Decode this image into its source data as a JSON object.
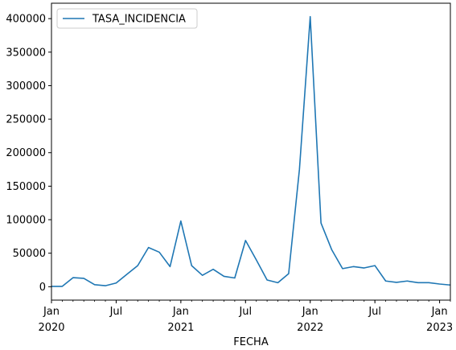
{
  "chart_data": {
    "type": "line",
    "xlabel": "FECHA",
    "ylabel": "",
    "title": "",
    "x": [
      "2020-01",
      "2020-02",
      "2020-03",
      "2020-04",
      "2020-05",
      "2020-06",
      "2020-07",
      "2020-08",
      "2020-09",
      "2020-10",
      "2020-11",
      "2020-12",
      "2021-01",
      "2021-02",
      "2021-03",
      "2021-04",
      "2021-05",
      "2021-06",
      "2021-07",
      "2021-08",
      "2021-09",
      "2021-10",
      "2021-11",
      "2021-12",
      "2022-01",
      "2022-02",
      "2022-03",
      "2022-04",
      "2022-05",
      "2022-06",
      "2022-07",
      "2022-08",
      "2022-09",
      "2022-10",
      "2022-11",
      "2022-12",
      "2023-01",
      "2023-02"
    ],
    "series": [
      {
        "name": "TASA_INCIDENCIA",
        "color": "#1f77b4",
        "values": [
          500,
          500,
          13500,
          12500,
          3000,
          1500,
          5500,
          18500,
          31500,
          58500,
          51500,
          30000,
          98000,
          31500,
          17000,
          26000,
          15500,
          13000,
          69000,
          40000,
          10000,
          6000,
          19500,
          175000,
          403000,
          95000,
          55000,
          27000,
          30000,
          28000,
          31500,
          8500,
          6500,
          8500,
          6000,
          6000,
          4000,
          2500
        ]
      }
    ],
    "xlim": [
      "2020-01",
      "2023-02"
    ],
    "ylim": [
      -20000,
      423000
    ],
    "yticks": [
      0,
      50000,
      100000,
      150000,
      200000,
      250000,
      300000,
      350000,
      400000
    ],
    "ytick_labels": [
      "0",
      "50000",
      "100000",
      "150000",
      "200000",
      "250000",
      "300000",
      "350000",
      "400000"
    ],
    "xticks": [
      {
        "date": "2020-01",
        "label": "Jan",
        "year": "2020"
      },
      {
        "date": "2020-07",
        "label": "Jul",
        "year": ""
      },
      {
        "date": "2021-01",
        "label": "Jan",
        "year": "2021"
      },
      {
        "date": "2021-07",
        "label": "Jul",
        "year": ""
      },
      {
        "date": "2022-01",
        "label": "Jan",
        "year": "2022"
      },
      {
        "date": "2022-07",
        "label": "Jul",
        "year": ""
      },
      {
        "date": "2023-01",
        "label": "Jan",
        "year": "2023"
      }
    ],
    "legend": {
      "position": "top-left",
      "entries": [
        "TASA_INCIDENCIA"
      ]
    },
    "grid": false
  }
}
